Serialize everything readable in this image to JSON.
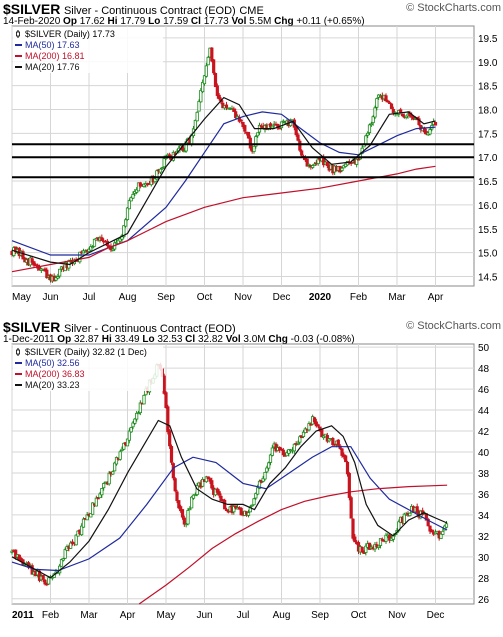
{
  "colors": {
    "ma50": "#1f2a9e",
    "ma200": "#c0102a",
    "ma20": "#111111",
    "up": "#1a8a1a",
    "down": "#c8141e",
    "grid": "#d6d6d6",
    "support": "#000000"
  },
  "chart_data": [
    {
      "type": "candlestick",
      "header": {
        "symbol": "$SILVER",
        "description": "Silver - Continuous Contract (EOD)",
        "exchange": "CME",
        "date": "14-Feb-2020",
        "stats": [
          {
            "label": "Op",
            "value": "17.62"
          },
          {
            "label": "Hi",
            "value": "17.79"
          },
          {
            "label": "Lo",
            "value": "17.59"
          },
          {
            "label": "Cl",
            "value": "17.73"
          },
          {
            "label": "Vol",
            "value": "5.5M"
          },
          {
            "label": "Chg",
            "value": "+0.11 (+0.65%)"
          }
        ],
        "source": "© StockCharts.com"
      },
      "legend": [
        {
          "label": "$SILVER (Daily) 17.73",
          "color": "#000000",
          "kind": "candle"
        },
        {
          "label": "MA(50) 17.63",
          "color": "#1f2a9e",
          "kind": "line"
        },
        {
          "label": "MA(200) 16.81",
          "color": "#c0102a",
          "kind": "line"
        },
        {
          "label": "MA(20) 17.76",
          "color": "#111111",
          "kind": "line"
        }
      ],
      "x_labels": [
        "May",
        "Jun",
        "Jul",
        "Aug",
        "Sep",
        "Oct",
        "Nov",
        "Dec",
        "2020",
        "Feb",
        "Mar",
        "Apr"
      ],
      "x_bold": [
        "2020"
      ],
      "ylim": [
        14.3,
        19.75
      ],
      "y_ticks": [
        "14.5",
        "15.0",
        "15.5",
        "16.0",
        "16.5",
        "17.0",
        "17.5",
        "18.0",
        "18.5",
        "19.0",
        "19.5"
      ],
      "hlines": [
        17.27,
        17.0,
        16.58
      ],
      "price_path": [
        [
          0,
          15.05
        ],
        [
          0.4,
          14.85
        ],
        [
          0.8,
          14.6
        ],
        [
          1.0,
          14.4
        ],
        [
          1.3,
          14.65
        ],
        [
          1.6,
          14.8
        ],
        [
          2.0,
          15.15
        ],
        [
          2.3,
          15.35
        ],
        [
          2.6,
          15.1
        ],
        [
          2.85,
          15.25
        ],
        [
          3.0,
          15.9
        ],
        [
          3.15,
          16.3
        ],
        [
          3.4,
          16.45
        ],
        [
          3.7,
          16.55
        ],
        [
          4.0,
          16.95
        ],
        [
          4.25,
          17.1
        ],
        [
          4.5,
          17.2
        ],
        [
          4.7,
          17.5
        ],
        [
          4.85,
          18.1
        ],
        [
          5.0,
          18.7
        ],
        [
          5.15,
          19.3
        ],
        [
          5.3,
          18.3
        ],
        [
          5.6,
          18.0
        ],
        [
          5.9,
          17.8
        ],
        [
          6.1,
          17.5
        ],
        [
          6.25,
          17.05
        ],
        [
          6.4,
          17.6
        ],
        [
          6.7,
          17.6
        ],
        [
          7.0,
          17.7
        ],
        [
          7.3,
          17.7
        ],
        [
          7.5,
          17.15
        ],
        [
          7.7,
          16.8
        ],
        [
          8.0,
          16.95
        ],
        [
          8.3,
          16.75
        ],
        [
          8.6,
          16.8
        ],
        [
          8.9,
          16.9
        ],
        [
          9.1,
          17.2
        ],
        [
          9.3,
          17.7
        ],
        [
          9.5,
          18.2
        ],
        [
          9.7,
          18.3
        ],
        [
          9.9,
          18.0
        ],
        [
          10.1,
          17.85
        ],
        [
          10.3,
          17.95
        ],
        [
          10.5,
          17.8
        ],
        [
          10.65,
          17.55
        ],
        [
          10.8,
          17.5
        ],
        [
          11.0,
          17.73
        ]
      ],
      "ma_lines": [
        {
          "name": "MA(50)",
          "color": "#1f2a9e",
          "points": [
            [
              0,
              15.25
            ],
            [
              1.0,
              14.95
            ],
            [
              2.0,
              14.95
            ],
            [
              3.0,
              15.25
            ],
            [
              4.0,
              15.95
            ],
            [
              4.5,
              16.5
            ],
            [
              5.0,
              17.1
            ],
            [
              5.5,
              17.7
            ],
            [
              6.0,
              17.85
            ],
            [
              6.5,
              17.95
            ],
            [
              7.0,
              17.9
            ],
            [
              7.5,
              17.6
            ],
            [
              8.0,
              17.3
            ],
            [
              8.5,
              17.1
            ],
            [
              9.0,
              17.05
            ],
            [
              9.5,
              17.25
            ],
            [
              10.0,
              17.45
            ],
            [
              10.5,
              17.6
            ],
            [
              11.0,
              17.63
            ]
          ]
        },
        {
          "name": "MA(200)",
          "color": "#c0102a",
          "points": [
            [
              0,
              14.6
            ],
            [
              1.0,
              14.75
            ],
            [
              2.0,
              14.9
            ],
            [
              2.5,
              15.1
            ],
            [
              3.0,
              15.25
            ],
            [
              3.5,
              15.45
            ],
            [
              4.0,
              15.65
            ],
            [
              5.0,
              15.95
            ],
            [
              6.0,
              16.15
            ],
            [
              7.0,
              16.25
            ],
            [
              8.0,
              16.35
            ],
            [
              9.0,
              16.5
            ],
            [
              10.0,
              16.65
            ],
            [
              10.5,
              16.75
            ],
            [
              11.0,
              16.81
            ]
          ]
        },
        {
          "name": "MA(20)",
          "color": "#111111",
          "points": [
            [
              0,
              15.05
            ],
            [
              1.0,
              14.8
            ],
            [
              1.5,
              14.75
            ],
            [
              2.0,
              15.0
            ],
            [
              2.5,
              15.2
            ],
            [
              3.0,
              15.4
            ],
            [
              3.5,
              16.1
            ],
            [
              4.0,
              16.8
            ],
            [
              4.5,
              17.3
            ],
            [
              5.0,
              17.8
            ],
            [
              5.5,
              18.25
            ],
            [
              5.9,
              18.1
            ],
            [
              6.3,
              17.6
            ],
            [
              6.8,
              17.6
            ],
            [
              7.3,
              17.75
            ],
            [
              7.8,
              17.2
            ],
            [
              8.3,
              16.85
            ],
            [
              8.8,
              16.9
            ],
            [
              9.3,
              17.25
            ],
            [
              9.8,
              17.9
            ],
            [
              10.3,
              17.95
            ],
            [
              10.7,
              17.7
            ],
            [
              11.0,
              17.76
            ]
          ]
        }
      ],
      "last_candle_index": 11.0
    },
    {
      "type": "candlestick",
      "header": {
        "symbol": "$SILVER",
        "description": "Silver - Continuous Contract (EOD)",
        "exchange": "",
        "date": "1-Dec-2011",
        "stats": [
          {
            "label": "Op",
            "value": "32.87"
          },
          {
            "label": "Hi",
            "value": "33.49"
          },
          {
            "label": "Lo",
            "value": "32.53"
          },
          {
            "label": "Cl",
            "value": "32.82"
          },
          {
            "label": "Vol",
            "value": "3.0M"
          },
          {
            "label": "Chg",
            "value": "-0.03 (-0.08%)"
          }
        ],
        "source": "© StockCharts.com"
      },
      "legend": [
        {
          "label": "$SILVER (Daily) 32.82 (1 Dec)",
          "color": "#000000",
          "kind": "candle"
        },
        {
          "label": "MA(50) 32.56",
          "color": "#1f2a9e",
          "kind": "line"
        },
        {
          "label": "MA(200) 36.83",
          "color": "#c0102a",
          "kind": "line"
        },
        {
          "label": "MA(20) 33.23",
          "color": "#111111",
          "kind": "line"
        }
      ],
      "x_labels": [
        "2011",
        "Feb",
        "Mar",
        "Apr",
        "May",
        "Jun",
        "Jul",
        "Aug",
        "Sep",
        "Oct",
        "Nov",
        "Dec"
      ],
      "x_bold": [
        "2011"
      ],
      "ylim": [
        25.5,
        50.3
      ],
      "y_ticks": [
        "26",
        "28",
        "30",
        "32",
        "34",
        "36",
        "38",
        "40",
        "42",
        "44",
        "46",
        "48",
        "50"
      ],
      "hlines": [],
      "price_path": [
        [
          0,
          30.5
        ],
        [
          0.3,
          29.5
        ],
        [
          0.6,
          28.5
        ],
        [
          0.9,
          27.5
        ],
        [
          1.1,
          28.0
        ],
        [
          1.3,
          30.0
        ],
        [
          1.6,
          31.5
        ],
        [
          1.9,
          33.5
        ],
        [
          2.2,
          35.5
        ],
        [
          2.5,
          37.5
        ],
        [
          2.8,
          40.0
        ],
        [
          3.1,
          42.0
        ],
        [
          3.4,
          45.0
        ],
        [
          3.7,
          47.5
        ],
        [
          3.85,
          48.5
        ],
        [
          4.0,
          44.0
        ],
        [
          4.15,
          38.5
        ],
        [
          4.3,
          35.0
        ],
        [
          4.5,
          33.0
        ],
        [
          4.7,
          36.0
        ],
        [
          5.0,
          37.5
        ],
        [
          5.3,
          36.0
        ],
        [
          5.6,
          34.5
        ],
        [
          5.9,
          34.5
        ],
        [
          6.1,
          34.0
        ],
        [
          6.3,
          35.5
        ],
        [
          6.6,
          38.5
        ],
        [
          6.8,
          40.5
        ],
        [
          7.1,
          39.5
        ],
        [
          7.5,
          41.5
        ],
        [
          7.8,
          43.0
        ],
        [
          8.0,
          42.0
        ],
        [
          8.2,
          41.0
        ],
        [
          8.5,
          40.5
        ],
        [
          8.7,
          38.5
        ],
        [
          8.85,
          32.0
        ],
        [
          9.0,
          30.5
        ],
        [
          9.3,
          31.0
        ],
        [
          9.6,
          31.5
        ],
        [
          9.9,
          32.0
        ],
        [
          10.1,
          33.5
        ],
        [
          10.4,
          34.5
        ],
        [
          10.7,
          34.0
        ],
        [
          10.9,
          32.5
        ],
        [
          11.1,
          32.0
        ],
        [
          11.3,
          32.8
        ]
      ],
      "ma_lines": [
        {
          "name": "MA(50)",
          "color": "#1f2a9e",
          "points": [
            [
              0,
              29.5
            ],
            [
              0.6,
              28.8
            ],
            [
              1.2,
              28.7
            ],
            [
              2.0,
              29.8
            ],
            [
              2.8,
              31.8
            ],
            [
              3.5,
              35.0
            ],
            [
              4.2,
              38.5
            ],
            [
              4.7,
              39.5
            ],
            [
              5.3,
              39.0
            ],
            [
              6.0,
              37.0
            ],
            [
              6.6,
              36.5
            ],
            [
              7.2,
              38.0
            ],
            [
              7.8,
              39.5
            ],
            [
              8.3,
              40.5
            ],
            [
              8.8,
              40.5
            ],
            [
              9.3,
              37.5
            ],
            [
              9.8,
              35.5
            ],
            [
              10.3,
              34.5
            ],
            [
              10.8,
              33.5
            ],
            [
              11.3,
              32.56
            ]
          ]
        },
        {
          "name": "MA(200)",
          "color": "#c0102a",
          "points": [
            [
              3.3,
              25.5
            ],
            [
              4.0,
              27.3
            ],
            [
              4.6,
              29.0
            ],
            [
              5.2,
              30.8
            ],
            [
              5.8,
              32.2
            ],
            [
              6.4,
              33.4
            ],
            [
              7.0,
              34.5
            ],
            [
              7.6,
              35.3
            ],
            [
              8.2,
              35.8
            ],
            [
              8.8,
              36.2
            ],
            [
              9.5,
              36.5
            ],
            [
              10.3,
              36.7
            ],
            [
              11.3,
              36.83
            ]
          ]
        },
        {
          "name": "MA(20)",
          "color": "#111111",
          "points": [
            [
              0,
              30.0
            ],
            [
              0.5,
              29.0
            ],
            [
              1.0,
              28.0
            ],
            [
              1.5,
              29.5
            ],
            [
              2.0,
              31.5
            ],
            [
              2.5,
              34.5
            ],
            [
              3.0,
              38.0
            ],
            [
              3.4,
              40.5
            ],
            [
              3.8,
              43.0
            ],
            [
              4.1,
              42.5
            ],
            [
              4.4,
              39.5
            ],
            [
              4.8,
              36.5
            ],
            [
              5.2,
              35.5
            ],
            [
              5.6,
              35.0
            ],
            [
              6.0,
              35.0
            ],
            [
              6.3,
              34.5
            ],
            [
              6.7,
              37.0
            ],
            [
              7.1,
              38.5
            ],
            [
              7.5,
              40.5
            ],
            [
              7.9,
              42.0
            ],
            [
              8.3,
              42.5
            ],
            [
              8.6,
              41.5
            ],
            [
              8.9,
              39.0
            ],
            [
              9.2,
              35.0
            ],
            [
              9.5,
              33.0
            ],
            [
              9.9,
              32.0
            ],
            [
              10.3,
              33.5
            ],
            [
              10.7,
              34.2
            ],
            [
              11.0,
              33.7
            ],
            [
              11.3,
              33.23
            ]
          ]
        }
      ],
      "last_candle_index": 11.3
    }
  ]
}
